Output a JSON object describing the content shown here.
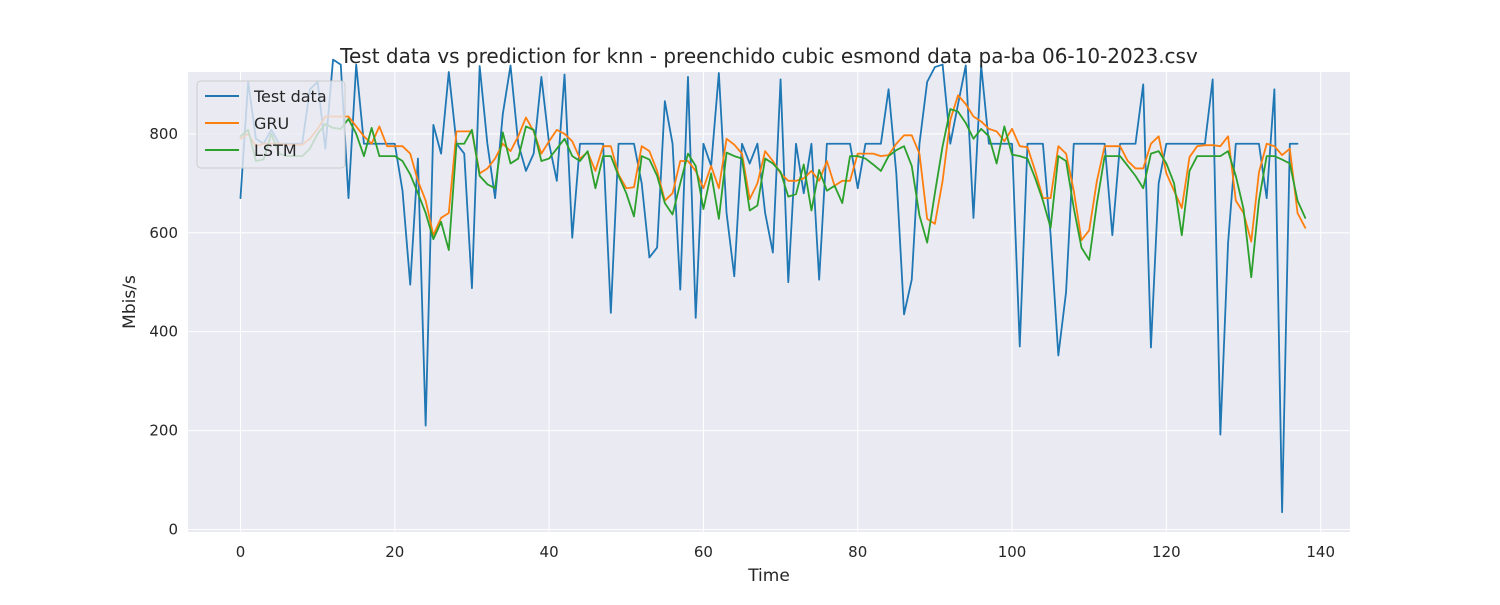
{
  "chart_data": {
    "type": "line",
    "title": "Test data vs prediction for knn - preenchido cubic esmond data pa-ba 06-10-2023.csv",
    "xlabel": "Time",
    "ylabel": "Mbis/s",
    "xlim": [
      -6.8,
      143.8
    ],
    "ylim": [
      -5,
      925
    ],
    "xticks": [
      0,
      20,
      40,
      60,
      80,
      100,
      120,
      140
    ],
    "yticks": [
      0,
      200,
      400,
      600,
      800
    ],
    "grid": true,
    "legend_position": "top-left",
    "colors": {
      "background": "#eaeaf2",
      "grid": "#ffffff",
      "test": "#1f77b4",
      "gru": "#ff7f0e",
      "lstm": "#2ca02c"
    },
    "series": [
      {
        "name": "Test data",
        "color": "#1f77b4",
        "values": [
          670,
          905,
          790,
          780,
          808,
          780,
          780,
          780,
          780,
          890,
          905,
          770,
          950,
          940,
          670,
          940,
          780,
          780,
          780,
          780,
          780,
          685,
          495,
          750,
          210,
          818,
          760,
          925,
          780,
          760,
          488,
          937,
          780,
          670,
          840,
          938,
          780,
          725,
          760,
          915,
          780,
          705,
          920,
          590,
          780,
          780,
          780,
          780,
          438,
          780,
          780,
          780,
          700,
          550,
          570,
          866,
          780,
          485,
          915,
          428,
          780,
          735,
          923,
          640,
          512,
          780,
          740,
          780,
          640,
          560,
          910,
          500,
          780,
          680,
          780,
          505,
          780,
          780,
          780,
          780,
          690,
          780,
          780,
          780,
          890,
          720,
          435,
          505,
          780,
          905,
          935,
          940,
          780,
          860,
          938,
          630,
          938,
          780,
          780,
          780,
          780,
          370,
          780,
          780,
          780,
          595,
          352,
          480,
          780,
          780,
          780,
          780,
          780,
          595,
          780,
          780,
          780,
          900,
          368,
          700,
          780,
          780,
          780,
          780,
          780,
          780,
          910,
          192,
          580,
          780,
          780,
          780,
          780,
          670,
          890,
          35,
          780,
          780
        ]
      },
      {
        "name": "GRU",
        "color": "#ff7f0e",
        "values": [
          790,
          800,
          775,
          780,
          780,
          780,
          778,
          778,
          778,
          790,
          810,
          835,
          835,
          835,
          835,
          815,
          795,
          780,
          815,
          775,
          775,
          775,
          760,
          705,
          665,
          595,
          630,
          640,
          805,
          805,
          805,
          720,
          730,
          750,
          780,
          765,
          795,
          833,
          805,
          760,
          785,
          808,
          800,
          785,
          750,
          763,
          725,
          775,
          775,
          718,
          690,
          692,
          775,
          765,
          725,
          665,
          680,
          745,
          745,
          725,
          690,
          735,
          690,
          790,
          778,
          760,
          668,
          700,
          765,
          745,
          720,
          705,
          705,
          710,
          725,
          705,
          745,
          695,
          705,
          705,
          760,
          760,
          760,
          755,
          757,
          780,
          797,
          797,
          760,
          628,
          618,
          705,
          828,
          878,
          860,
          835,
          825,
          810,
          805,
          785,
          810,
          775,
          773,
          725,
          670,
          670,
          775,
          760,
          685,
          585,
          605,
          705,
          775,
          775,
          775,
          745,
          730,
          730,
          780,
          795,
          720,
          685,
          650,
          753,
          775,
          777,
          777,
          775,
          795,
          665,
          640,
          582,
          722,
          780,
          775,
          757,
          770,
          640,
          610
        ]
      },
      {
        "name": "LSTM",
        "color": "#2ca02c",
        "values": [
          795,
          808,
          745,
          748,
          800,
          760,
          755,
          755,
          755,
          770,
          800,
          820,
          812,
          810,
          830,
          800,
          755,
          812,
          755,
          755,
          755,
          745,
          718,
          680,
          640,
          587,
          622,
          565,
          780,
          780,
          808,
          715,
          698,
          690,
          803,
          740,
          750,
          815,
          808,
          745,
          750,
          770,
          790,
          755,
          745,
          765,
          690,
          755,
          755,
          715,
          680,
          633,
          755,
          748,
          715,
          660,
          637,
          700,
          760,
          735,
          648,
          720,
          628,
          762,
          755,
          750,
          645,
          655,
          750,
          740,
          723,
          673,
          678,
          738,
          645,
          727,
          685,
          695,
          660,
          755,
          755,
          750,
          738,
          725,
          755,
          767,
          775,
          735,
          635,
          580,
          680,
          775,
          850,
          845,
          822,
          790,
          810,
          795,
          740,
          815,
          758,
          755,
          750,
          710,
          665,
          610,
          755,
          745,
          650,
          570,
          545,
          660,
          755,
          755,
          755,
          735,
          715,
          690,
          760,
          765,
          740,
          700,
          595,
          725,
          755,
          755,
          755,
          755,
          765,
          715,
          648,
          510,
          665,
          755,
          755,
          748,
          740,
          665,
          630
        ]
      }
    ]
  }
}
